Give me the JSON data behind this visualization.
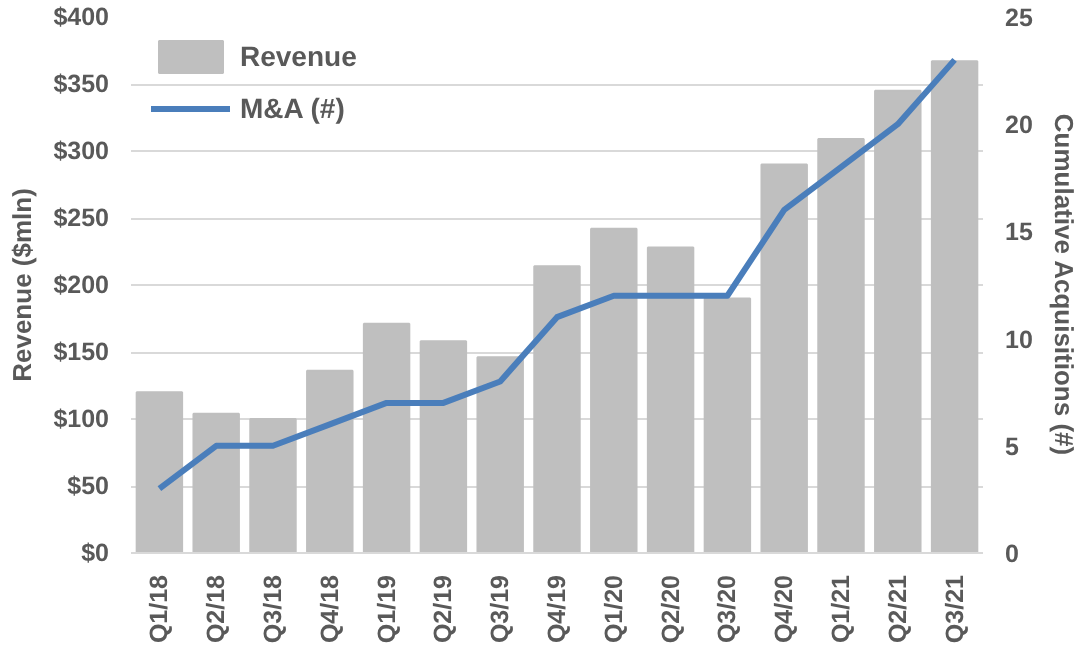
{
  "chart_data": {
    "type": "bar",
    "ylabel": "Revenue ($mln)",
    "y2label": "Cumulative Acquisitions (#)",
    "categories": [
      "Q1/18",
      "Q2/18",
      "Q3/18",
      "Q4/18",
      "Q1/19",
      "Q2/19",
      "Q3/19",
      "Q4/19",
      "Q1/20",
      "Q2/20",
      "Q3/20",
      "Q4/20",
      "Q1/21",
      "Q2/21",
      "Q3/21"
    ],
    "series": [
      {
        "name": "Revenue",
        "color": "#bfbfbf",
        "values": [
          120,
          104,
          100,
          136,
          171,
          158,
          146,
          214,
          242,
          228,
          190,
          290,
          309,
          345,
          367
        ]
      },
      {
        "name": "M&A (#)",
        "type": "line",
        "axis": "y2",
        "color": "#4a7ebb",
        "values": [
          3,
          5,
          5,
          6,
          7,
          7,
          8,
          11,
          12,
          12,
          12,
          16,
          18,
          20,
          23
        ]
      }
    ],
    "ylim": [
      0,
      400
    ],
    "yticks": [
      {
        "value": 0,
        "label": "$0"
      },
      {
        "value": 50,
        "label": "$50"
      },
      {
        "value": 100,
        "label": "$100"
      },
      {
        "value": 150,
        "label": "$150"
      },
      {
        "value": 200,
        "label": "$200"
      },
      {
        "value": 250,
        "label": "$250"
      },
      {
        "value": 300,
        "label": "$300"
      },
      {
        "value": 350,
        "label": "$350"
      },
      {
        "value": 400,
        "label": "$400"
      }
    ],
    "y2lim": [
      0,
      25
    ],
    "y2ticks": [
      0,
      5,
      10,
      15,
      20,
      25
    ],
    "grid": "y",
    "legend": "top left"
  }
}
